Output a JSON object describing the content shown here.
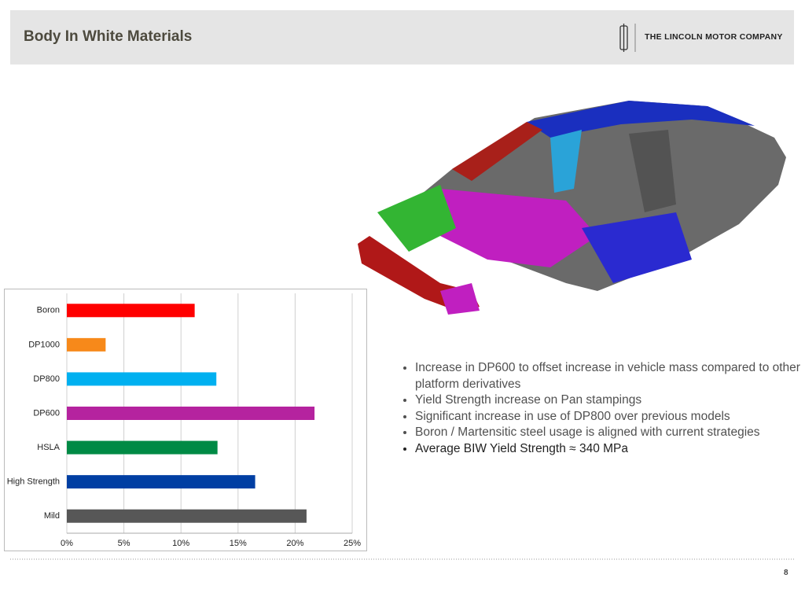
{
  "header": {
    "title": "Body In White Materials",
    "company": "THE LINCOLN MOTOR COMPANY"
  },
  "chart_data": {
    "type": "hbar",
    "categories": [
      "Boron",
      "DP1000",
      "DP800",
      "DP600",
      "HSLA",
      "High Strength",
      "Mild"
    ],
    "values": [
      11.2,
      3.4,
      13.1,
      21.7,
      13.2,
      16.5,
      21.0
    ],
    "colors": [
      "#ff0000",
      "#f7891a",
      "#00b0f0",
      "#b5239f",
      "#008a45",
      "#003fa3",
      "#575757"
    ],
    "xlim": [
      0,
      25
    ],
    "xticks": [
      {
        "value": 0,
        "label": "0%"
      },
      {
        "value": 5,
        "label": "5%"
      },
      {
        "value": 10,
        "label": "10%"
      },
      {
        "value": 15,
        "label": "15%"
      },
      {
        "value": 20,
        "label": "20%"
      },
      {
        "value": 25,
        "label": "25%"
      }
    ],
    "grid": true
  },
  "bullets": [
    "Increase in DP600 to offset increase in vehicle mass compared to other platform derivatives",
    "Yield Strength increase on Pan stampings",
    "Significant increase in use of DP800 over  previous models",
    "Boron / Martensitic steel usage is aligned with current strategies",
    "Average BIW Yield Strength ≈ 340 MPa"
  ],
  "page_number": "8"
}
